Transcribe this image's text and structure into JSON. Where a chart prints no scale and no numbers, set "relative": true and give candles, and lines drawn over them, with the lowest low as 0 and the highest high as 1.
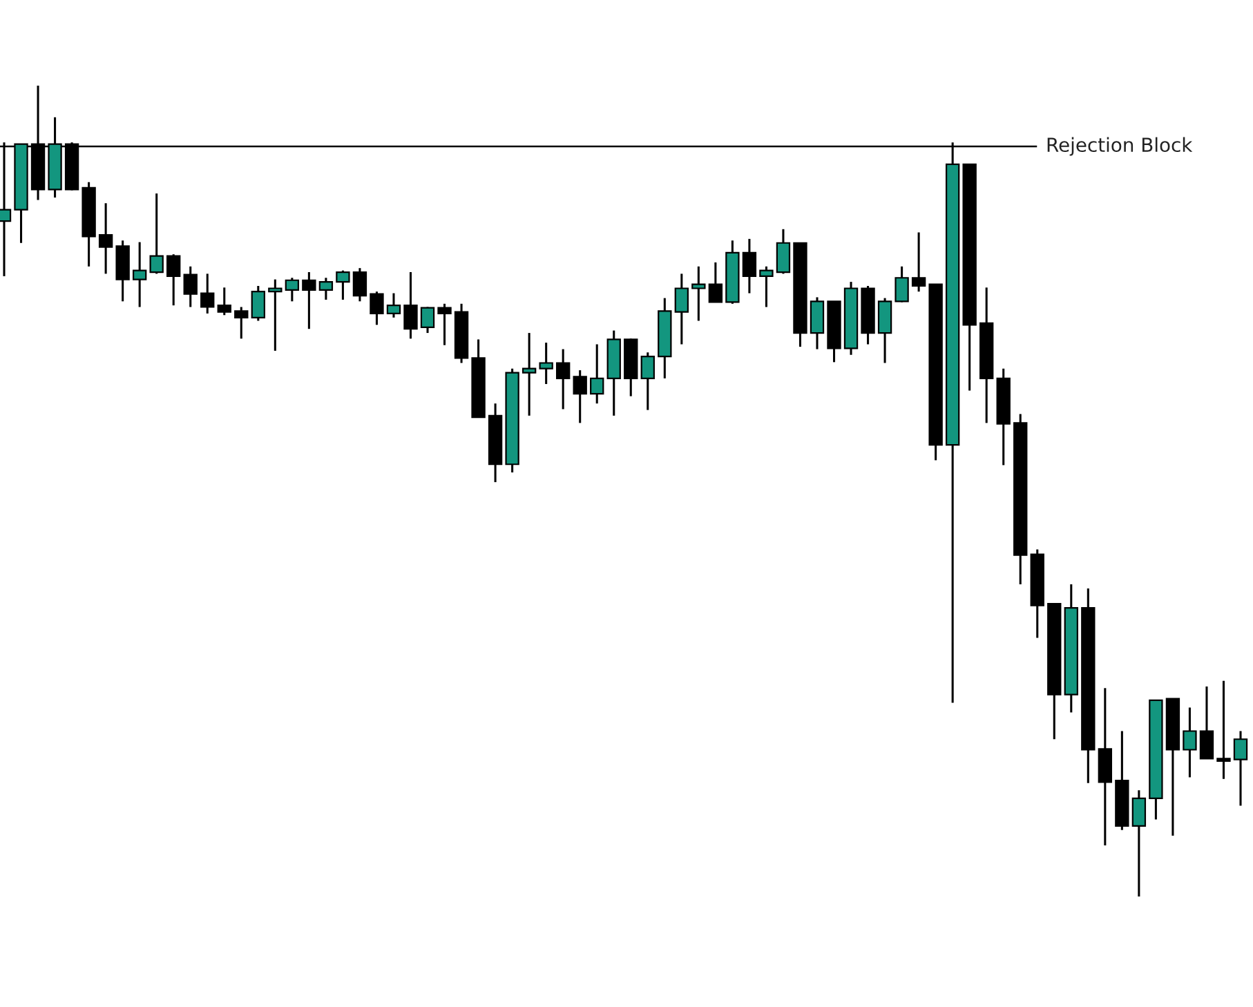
{
  "chart_data": {
    "type": "candlestick",
    "relative": true,
    "categories": [
      null,
      null,
      null,
      null,
      null,
      null,
      null,
      null,
      null,
      null,
      null,
      null,
      null,
      null,
      null,
      null,
      null,
      null,
      null,
      null,
      null,
      null,
      null,
      null,
      null,
      null,
      null,
      null,
      null,
      null,
      null,
      null,
      null,
      null,
      null,
      null,
      null,
      null,
      null,
      null,
      null,
      null,
      null,
      null,
      null,
      null,
      null,
      null,
      null,
      null,
      null,
      null,
      null,
      null,
      null,
      null,
      null,
      null,
      null,
      null,
      null,
      null,
      null,
      null,
      null,
      null,
      null,
      null,
      null,
      null,
      null,
      null,
      null,
      null
    ],
    "ohlc": [
      [
        0.833,
        0.93,
        0.765,
        0.847
      ],
      [
        0.847,
        0.928,
        0.806,
        0.928
      ],
      [
        0.928,
        1,
        0.859,
        0.872
      ],
      [
        0.872,
        0.961,
        0.862,
        0.928
      ],
      [
        0.928,
        0.93,
        0.871,
        0.872
      ],
      [
        0.874,
        0.881,
        0.777,
        0.814
      ],
      [
        0.816,
        0.855,
        0.768,
        0.801
      ],
      [
        0.802,
        0.809,
        0.734,
        0.761
      ],
      [
        0.761,
        0.807,
        0.727,
        0.772
      ],
      [
        0.77,
        0.867,
        0.768,
        0.79
      ],
      [
        0.79,
        0.792,
        0.729,
        0.765
      ],
      [
        0.767,
        0.777,
        0.727,
        0.743
      ],
      [
        0.744,
        0.768,
        0.719,
        0.727
      ],
      [
        0.729,
        0.751,
        0.717,
        0.721
      ],
      [
        0.722,
        0.727,
        0.688,
        0.714
      ],
      [
        0.714,
        0.753,
        0.71,
        0.746
      ],
      [
        0.746,
        0.761,
        0.673,
        0.75
      ],
      [
        0.748,
        0.763,
        0.734,
        0.76
      ],
      [
        0.76,
        0.77,
        0.7,
        0.748
      ],
      [
        0.748,
        0.763,
        0.736,
        0.758
      ],
      [
        0.758,
        0.772,
        0.736,
        0.77
      ],
      [
        0.77,
        0.775,
        0.734,
        0.741
      ],
      [
        0.743,
        0.746,
        0.705,
        0.719
      ],
      [
        0.719,
        0.744,
        0.714,
        0.729
      ],
      [
        0.729,
        0.77,
        0.688,
        0.7
      ],
      [
        0.702,
        0.727,
        0.695,
        0.726
      ],
      [
        0.726,
        0.731,
        0.68,
        0.719
      ],
      [
        0.721,
        0.731,
        0.658,
        0.664
      ],
      [
        0.664,
        0.687,
        0.591,
        0.591
      ],
      [
        0.593,
        0.608,
        0.511,
        0.533
      ],
      [
        0.533,
        0.651,
        0.523,
        0.646
      ],
      [
        0.646,
        0.695,
        0.593,
        0.651
      ],
      [
        0.651,
        0.683,
        0.632,
        0.658
      ],
      [
        0.658,
        0.675,
        0.601,
        0.639
      ],
      [
        0.641,
        0.649,
        0.584,
        0.62
      ],
      [
        0.62,
        0.681,
        0.608,
        0.639
      ],
      [
        0.639,
        0.698,
        0.593,
        0.687
      ],
      [
        0.687,
        0.688,
        0.617,
        0.639
      ],
      [
        0.639,
        0.671,
        0.6,
        0.666
      ],
      [
        0.666,
        0.738,
        0.639,
        0.722
      ],
      [
        0.721,
        0.768,
        0.681,
        0.75
      ],
      [
        0.75,
        0.777,
        0.71,
        0.755
      ],
      [
        0.755,
        0.782,
        0.733,
        0.733
      ],
      [
        0.733,
        0.809,
        0.731,
        0.794
      ],
      [
        0.794,
        0.811,
        0.744,
        0.765
      ],
      [
        0.765,
        0.777,
        0.727,
        0.772
      ],
      [
        0.77,
        0.823,
        0.768,
        0.806
      ],
      [
        0.806,
        0.806,
        0.678,
        0.695
      ],
      [
        0.695,
        0.739,
        0.675,
        0.734
      ],
      [
        0.734,
        0.734,
        0.659,
        0.676
      ],
      [
        0.676,
        0.758,
        0.668,
        0.75
      ],
      [
        0.75,
        0.753,
        0.681,
        0.695
      ],
      [
        0.695,
        0.738,
        0.658,
        0.734
      ],
      [
        0.734,
        0.777,
        0.733,
        0.763
      ],
      [
        0.763,
        0.819,
        0.746,
        0.753
      ],
      [
        0.755,
        0.755,
        0.538,
        0.557
      ],
      [
        0.557,
        0.93,
        0.239,
        0.903
      ],
      [
        0.903,
        0.903,
        0.624,
        0.705
      ],
      [
        0.707,
        0.751,
        0.584,
        0.639
      ],
      [
        0.639,
        0.651,
        0.532,
        0.583
      ],
      [
        0.584,
        0.595,
        0.385,
        0.421
      ],
      [
        0.422,
        0.428,
        0.319,
        0.359
      ],
      [
        0.361,
        0.361,
        0.194,
        0.249
      ],
      [
        0.249,
        0.385,
        0.227,
        0.356
      ],
      [
        0.356,
        0.38,
        0.14,
        0.181
      ],
      [
        0.182,
        0.257,
        0.063,
        0.141
      ],
      [
        0.143,
        0.204,
        0.082,
        0.087
      ],
      [
        0.087,
        0.131,
        0,
        0.121
      ],
      [
        0.121,
        0.242,
        0.095,
        0.242
      ],
      [
        0.244,
        0.244,
        0.075,
        0.181
      ],
      [
        0.181,
        0.233,
        0.147,
        0.204
      ],
      [
        0.204,
        0.259,
        0.17,
        0.17
      ],
      [
        0.17,
        0.266,
        0.145,
        0.167
      ],
      [
        0.169,
        0.204,
        0.112,
        0.194
      ]
    ],
    "colors": [
      "#13967f",
      "#13967f",
      "#000000",
      "#13967f",
      "#000000",
      "#000000",
      "#000000",
      "#000000",
      "#13967f",
      "#13967f",
      "#000000",
      "#000000",
      "#000000",
      "#000000",
      "#000000",
      "#13967f",
      "#13967f",
      "#13967f",
      "#000000",
      "#13967f",
      "#13967f",
      "#000000",
      "#000000",
      "#13967f",
      "#000000",
      "#13967f",
      "#000000",
      "#000000",
      "#000000",
      "#000000",
      "#13967f",
      "#13967f",
      "#13967f",
      "#000000",
      "#000000",
      "#13967f",
      "#13967f",
      "#000000",
      "#13967f",
      "#13967f",
      "#13967f",
      "#13967f",
      "#000000",
      "#13967f",
      "#000000",
      "#13967f",
      "#13967f",
      "#000000",
      "#13967f",
      "#000000",
      "#13967f",
      "#000000",
      "#13967f",
      "#13967f",
      "#000000",
      "#000000",
      "#13967f",
      "#000000",
      "#000000",
      "#000000",
      "#000000",
      "#000000",
      "#000000",
      "#13967f",
      "#000000",
      "#000000",
      "#000000",
      "#13967f",
      "#13967f",
      "#000000",
      "#13967f",
      "#000000",
      "#000000",
      "#13967f"
    ],
    "ref_lines": [
      {
        "axis": "y",
        "value": 0.925,
        "label": "Rejection Block",
        "color": "#000000"
      }
    ],
    "legend": false
  }
}
